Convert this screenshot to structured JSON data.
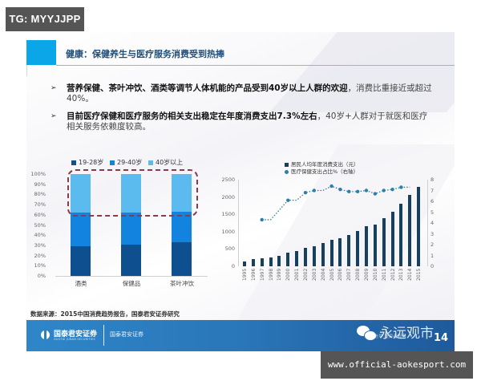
{
  "watermark_top": "TG: MYYJJPP",
  "watermark_bottom": "www.official-aokesport.com",
  "slide": {
    "title": "健康：保健养生与医疗服务消费受到热捧",
    "bullets": [
      {
        "marker": "➢",
        "bold": "营养保健、茶叶冲饮、酒类等调节人体机能的产品受到40岁以上人群的欢迎",
        "rest": "，消费比重接近或超过40%。"
      },
      {
        "marker": "➢",
        "bold": "目前医疗保健和医疗服务的相关支出稳定在年度消费支出7.3%左右",
        "rest": "，40岁+人群对于就医和医疗相关服务依赖度较高。"
      }
    ],
    "source": "数据来源：2015中国消费趋势报告，国泰君安证券研究",
    "footer": {
      "brand": "国泰君安证券",
      "brand_en": "GUOTAI JUNAN SECURITIES",
      "brand2": "国泰君安证券",
      "wechat_name": "永远观市",
      "wechat_sub": "微信号 投资者服务",
      "page_number": "14"
    },
    "colors": {
      "accent": "#0aa6e8",
      "title": "#1f4e79",
      "footer": "#2a76b8",
      "bar_dark": "#17405f",
      "dot": "#2e7ea6"
    }
  },
  "chart_data": [
    {
      "type": "bar",
      "stacked": true,
      "title": "",
      "categories": [
        "酒类",
        "保健品",
        "茶叶冲饮"
      ],
      "series": [
        {
          "name": "19-28岁",
          "color": "#0e4f8f",
          "values": [
            29,
            31,
            33
          ]
        },
        {
          "name": "29-40岁",
          "color": "#1383e0",
          "values": [
            33,
            31,
            30
          ]
        },
        {
          "name": "40岁以上",
          "color": "#5bbbee",
          "values": [
            38,
            38,
            37
          ]
        }
      ],
      "yticks": [
        "0%",
        "10%",
        "20%",
        "30%",
        "40%",
        "50%",
        "60%",
        "70%",
        "80%",
        "90%",
        "100%"
      ],
      "ylim": [
        0,
        100
      ],
      "legend_position": "top",
      "annotation": "dashed rounded box highlighting 40岁以上 segments"
    },
    {
      "type": "bar+line",
      "title": "",
      "categories": [
        "1995",
        "1996",
        "1997",
        "1998",
        "1999",
        "2000",
        "2001",
        "2002",
        "2003",
        "2004",
        "2005",
        "2006",
        "2007",
        "2008",
        "2009",
        "2010",
        "2011",
        "2012",
        "2013",
        "2014",
        "2015"
      ],
      "series": [
        {
          "name": "居民人均年度消费支出（元）",
          "type": "bar",
          "axis": "left",
          "values": [
            150,
            200,
            240,
            260,
            310,
            400,
            430,
            530,
            590,
            660,
            760,
            810,
            900,
            1030,
            1150,
            1200,
            1400,
            1580,
            1800,
            2060,
            2290
          ]
        },
        {
          "name": "医疗保健支出占比%（右轴）",
          "type": "line",
          "axis": "right",
          "values": [
            null,
            null,
            4.3,
            4.3,
            null,
            6.1,
            6.1,
            6.8,
            7.0,
            7.0,
            7.4,
            7.1,
            6.9,
            6.9,
            7.0,
            6.7,
            7.0,
            7.1,
            7.3,
            7.3,
            null
          ]
        }
      ],
      "yticks_left": [
        "0",
        "500",
        "1000",
        "1500",
        "2000",
        "2500"
      ],
      "ylim_left": [
        0,
        2500
      ],
      "yticks_right": [
        "0",
        "1",
        "2",
        "3",
        "4",
        "5",
        "6",
        "7",
        "8"
      ],
      "ylim_right": [
        0,
        8
      ],
      "legend_position": "top"
    }
  ]
}
